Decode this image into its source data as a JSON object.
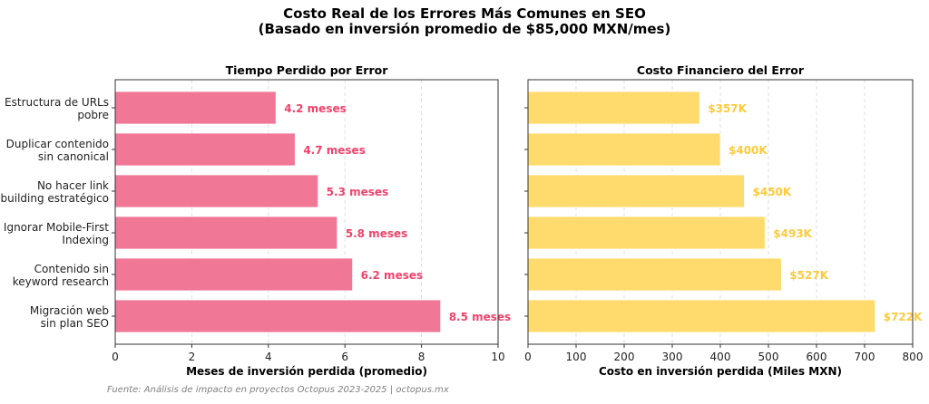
{
  "title_line1": "Costo Real de los Errores Más Comunes en SEO",
  "title_line2": "(Basado en inversión promedio de $85,000 MXN/mes)",
  "footer": "Fuente: Análisis de impacto en proyectos Octopus 2023-2025 | octopus.mx",
  "chart_data": [
    {
      "type": "bar",
      "orientation": "horizontal",
      "title": "Tiempo Perdido por Error",
      "xlabel": "Meses de inversión perdida (promedio)",
      "xlim": [
        0,
        10
      ],
      "xticks": [
        "0",
        "2",
        "4",
        "6",
        "8",
        "10"
      ],
      "grid": "x dashed",
      "categories": [
        [
          "Estructura de URLs",
          "pobre"
        ],
        [
          "Duplicar contenido",
          "sin canonical"
        ],
        [
          "No hacer link",
          "building estratégico"
        ],
        [
          "Ignorar Mobile-First",
          "Indexing"
        ],
        [
          "Contenido sin",
          "keyword research"
        ],
        [
          "Migración web",
          "sin plan SEO"
        ]
      ],
      "values": [
        4.2,
        4.7,
        5.3,
        5.8,
        6.2,
        8.5
      ],
      "data_labels": [
        "4.2 meses",
        "4.7 meses",
        "5.3 meses",
        "5.8 meses",
        "6.2 meses",
        "8.5 meses"
      ],
      "bar_color": "#f07090",
      "label_color": "#f0436b"
    },
    {
      "type": "bar",
      "orientation": "horizontal",
      "title": "Costo Financiero del Error",
      "xlabel": "Costo en inversión perdida (Miles MXN)",
      "xlim": [
        0,
        800
      ],
      "xticks": [
        "0",
        "100",
        "200",
        "300",
        "400",
        "500",
        "600",
        "700",
        "800"
      ],
      "grid": "x dashed",
      "values": [
        357,
        400,
        450,
        493,
        527,
        722
      ],
      "data_labels": [
        "$357K",
        "$400K",
        "$450K",
        "$493K",
        "$527K",
        "$722K"
      ],
      "bar_color": "#ffd966",
      "label_color": "#ffca3a"
    }
  ]
}
